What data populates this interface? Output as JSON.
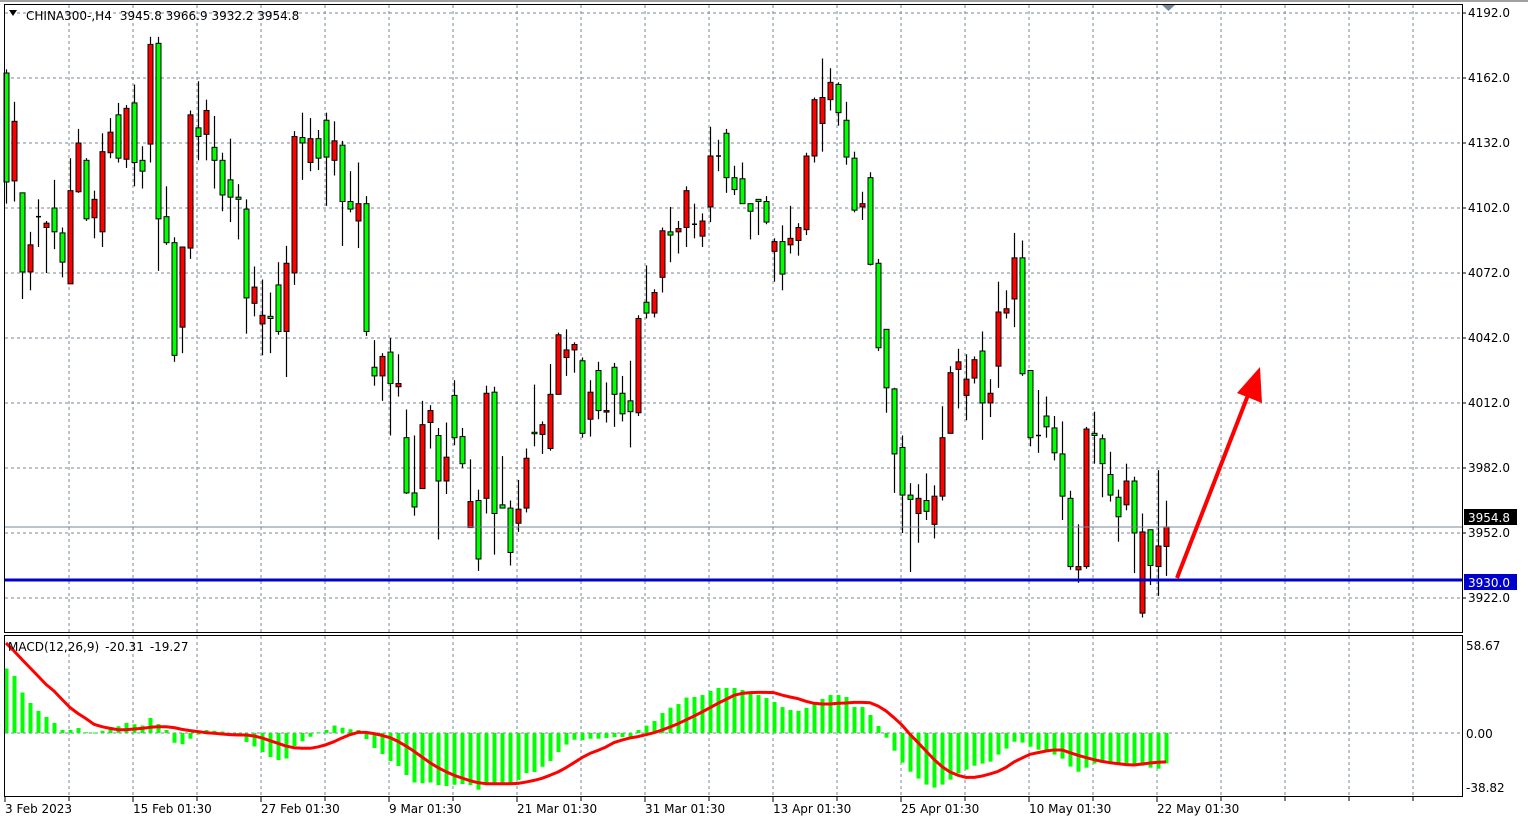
{
  "header": {
    "symbol_timeframe": "CHINA300-,H4",
    "ohlc": "3945.8 3966.9 3932.2 3954.8",
    "menu_icon": "triangle-down-icon"
  },
  "macd_label": {
    "name": "MACD(12,26,9)",
    "macd_value": "-20.31",
    "signal_value": "-19.27"
  },
  "chart_data": {
    "type": "candlestick",
    "symbol": "CHINA300-",
    "timeframe": "H4",
    "grid": true,
    "colors": {
      "bull_body": "#ff0000",
      "bear_body": "#00ff00",
      "wick": "#000000",
      "grid": "#778899",
      "horizontal_line": "#0000cc",
      "bid_line": "#778899",
      "macd_histogram": "#00ff00",
      "signal_line": "#ff0000",
      "arrow": "#ff0000"
    },
    "price_ticks": [
      "4192.0",
      "4162.0",
      "4132.0",
      "4102.0",
      "4072.0",
      "4042.0",
      "4012.0",
      "3982.0",
      "3952.0",
      "3922.0"
    ],
    "time_labels": [
      "3 Feb 2023",
      "15 Feb 01:30",
      "27 Feb 01:30",
      "9 Mar 01:30",
      "21 Mar 01:30",
      "31 Mar 01:30",
      "13 Apr 01:30",
      "25 Apr 01:30",
      "10 May 01:30",
      "22 May 01:30"
    ],
    "bid_price_label": "3954.8",
    "horizontal_line_label": "3930.0",
    "annotations": [
      {
        "type": "arrow",
        "direction": "up",
        "color": "#ff0000"
      }
    ],
    "candles_ohlc": [
      [
        4164.3,
        4166,
        4104,
        4114
      ],
      [
        4114.5,
        4151,
        4105,
        4142
      ],
      [
        4109,
        4109,
        4060,
        4072.5
      ],
      [
        4072.5,
        4091,
        4064,
        4085
      ],
      [
        4098,
        4106,
        4084,
        4098
      ],
      [
        4093,
        4096,
        4072,
        4095
      ],
      [
        4102,
        4115,
        4083,
        4091
      ],
      [
        4090.5,
        4093,
        4070,
        4077
      ],
      [
        4067,
        4125,
        4067,
        4110
      ],
      [
        4109.5,
        4138.5,
        4109,
        4132
      ],
      [
        4124,
        4125,
        4096,
        4097
      ],
      [
        4097.5,
        4110,
        4088,
        4106
      ],
      [
        4091,
        4136.5,
        4084,
        4128
      ],
      [
        4127.5,
        4143.5,
        4125,
        4137
      ],
      [
        4145,
        4150.5,
        4123,
        4125
      ],
      [
        4124.5,
        4149.5,
        4120.5,
        4148
      ],
      [
        4150.5,
        4159,
        4112,
        4123
      ],
      [
        4124,
        4130.5,
        4111,
        4119
      ],
      [
        4131.5,
        4181,
        4123,
        4177.5
      ],
      [
        4178,
        4181,
        4073,
        4097
      ],
      [
        4098,
        4112,
        4085,
        4086
      ],
      [
        4086,
        4088.5,
        4031,
        4034
      ],
      [
        4047,
        4084,
        4035,
        4084
      ],
      [
        4083.5,
        4147,
        4078.5,
        4145
      ],
      [
        4139,
        4160.5,
        4124,
        4135
      ],
      [
        4136,
        4152,
        4124,
        4147
      ],
      [
        4130,
        4144.5,
        4111,
        4124
      ],
      [
        4124,
        4127.5,
        4100.5,
        4108
      ],
      [
        4115,
        4134,
        4095.5,
        4107
      ],
      [
        4107,
        4113,
        4087.5,
        4106
      ],
      [
        4101.5,
        4106,
        4044,
        4060.5
      ],
      [
        4058,
        4075,
        4052,
        4065.5
      ],
      [
        4048.5,
        4069,
        4034,
        4052.5
      ],
      [
        4052,
        4063,
        4035,
        4051
      ],
      [
        4066.5,
        4077,
        4043.5,
        4045
      ],
      [
        4045,
        4084.5,
        4024,
        4076.5
      ],
      [
        4072,
        4137.5,
        4066.5,
        4135
      ],
      [
        4134.5,
        4146,
        4115,
        4132
      ],
      [
        4123,
        4143.5,
        4119,
        4134
      ],
      [
        4134,
        4138,
        4119.5,
        4125
      ],
      [
        4142.5,
        4146,
        4103,
        4125.5
      ],
      [
        4124,
        4142,
        4117,
        4133
      ],
      [
        4131,
        4133,
        4084.5,
        4105
      ],
      [
        4105,
        4119,
        4100,
        4101.5
      ],
      [
        4096,
        4123,
        4083.5,
        4104
      ],
      [
        4104,
        4107.5,
        4043,
        4045
      ],
      [
        4028.5,
        4041,
        4020,
        4024.5
      ],
      [
        4024.5,
        4035,
        4013,
        4033.5
      ],
      [
        4035.5,
        4042,
        3997,
        4021
      ],
      [
        4019.5,
        4034.5,
        4015,
        4021
      ],
      [
        3996,
        4009,
        3970,
        3970.5
      ],
      [
        3970.5,
        3997,
        3960,
        3964
      ],
      [
        3972.5,
        4013,
        3972.5,
        4002
      ],
      [
        4003,
        4011,
        3991,
        4008.5
      ],
      [
        3997,
        4000.5,
        3949,
        3976
      ],
      [
        3976,
        4003,
        3970,
        3987
      ],
      [
        4015.5,
        4022.5,
        3992.5,
        3996
      ],
      [
        3996.5,
        4000.5,
        3982,
        3984
      ],
      [
        3954.5,
        3986,
        3954.5,
        3966.5
      ],
      [
        3967,
        3972,
        3934.5,
        3940
      ],
      [
        3968,
        4020,
        3961,
        4016.5
      ],
      [
        4017,
        4019.5,
        3942,
        3961
      ],
      [
        3965,
        3987.5,
        3963.5,
        3963.5
      ],
      [
        3963.5,
        3967,
        3937,
        3943
      ],
      [
        3956.5,
        3976.5,
        3952.5,
        3963
      ],
      [
        3963.5,
        3991,
        3961.5,
        3986.5
      ],
      [
        3998.5,
        4020.5,
        3992,
        3998
      ],
      [
        3997.5,
        4003.5,
        3988.5,
        4002
      ],
      [
        3991,
        4030,
        3990,
        4016
      ],
      [
        4016,
        4044.5,
        4016,
        4043.5
      ],
      [
        4033,
        4046,
        4024.5,
        4036.5
      ],
      [
        4036.5,
        4040,
        4026,
        4039
      ],
      [
        4031.5,
        4033,
        3996,
        3998
      ],
      [
        4004.5,
        4022.5,
        3996.5,
        4017
      ],
      [
        4027,
        4031,
        4004.5,
        4008.5
      ],
      [
        4008,
        4021.5,
        4003,
        4008.5
      ],
      [
        4028.5,
        4030.5,
        4001,
        4016
      ],
      [
        4016.5,
        4024.5,
        4003.5,
        4007
      ],
      [
        4013,
        4031.5,
        3991.5,
        4008
      ],
      [
        4007.5,
        4052.5,
        4006,
        4051
      ],
      [
        4058.5,
        4075.5,
        4051,
        4053.5
      ],
      [
        4053.5,
        4064.5,
        4051.5,
        4063
      ],
      [
        4070,
        4093,
        4063,
        4091.5
      ],
      [
        4091,
        4102.5,
        4077,
        4089.5
      ],
      [
        4091,
        4096,
        4081,
        4092.5
      ],
      [
        4093,
        4112,
        4084,
        4110
      ],
      [
        4094.5,
        4104,
        4088,
        4094.5
      ],
      [
        4089,
        4099.5,
        4084,
        4096
      ],
      [
        4102.5,
        4139.5,
        4095.5,
        4126
      ],
      [
        4126,
        4133.5,
        4119,
        4126
      ],
      [
        4136.5,
        4138.5,
        4109,
        4116
      ],
      [
        4116,
        4121.5,
        4108,
        4110.5
      ],
      [
        4115.5,
        4123,
        4104,
        4104
      ],
      [
        4104,
        4104,
        4087.5,
        4100.5
      ],
      [
        4106,
        4106,
        4089.5,
        4105
      ],
      [
        4105,
        4107.5,
        4094.5,
        4095.5
      ],
      [
        4082,
        4088,
        4068,
        4086.5
      ],
      [
        4086.5,
        4094,
        4064,
        4071.5
      ],
      [
        4085,
        4103,
        4081,
        4088
      ],
      [
        4087,
        4095,
        4080,
        4093
      ],
      [
        4092,
        4127.5,
        4089.5,
        4126
      ],
      [
        4126,
        4153,
        4123,
        4152
      ],
      [
        4141,
        4171,
        4128,
        4153
      ],
      [
        4152,
        4166.5,
        4147,
        4160
      ],
      [
        4159,
        4160,
        4140,
        4146
      ],
      [
        4142.5,
        4151,
        4122,
        4125.5
      ],
      [
        4125,
        4128,
        4100,
        4101
      ],
      [
        4102.5,
        4109.5,
        4096.5,
        4104
      ],
      [
        4116,
        4118.5,
        4075.5,
        4076
      ],
      [
        4076.5,
        4078.5,
        4036,
        4037.5
      ],
      [
        4046,
        4046,
        4007.5,
        4019
      ],
      [
        4018.5,
        4019,
        3970.5,
        3988.5
      ],
      [
        3991.5,
        3997,
        3952,
        3969.5
      ],
      [
        3969.5,
        3975,
        3934,
        3967.5
      ],
      [
        3961,
        3974.5,
        3947.5,
        3968
      ],
      [
        3967,
        3979.5,
        3958,
        3962
      ],
      [
        3956,
        3974,
        3949.5,
        3969
      ],
      [
        3969,
        4010.5,
        3967,
        3996
      ],
      [
        3998,
        4029,
        3998,
        4026
      ],
      [
        4027.5,
        4037,
        4009.5,
        4031
      ],
      [
        4015.5,
        4034.5,
        4004,
        4023
      ],
      [
        4023.5,
        4033.5,
        4021,
        4032
      ],
      [
        4036,
        4045,
        3995,
        4012
      ],
      [
        4012,
        4023,
        4005.5,
        4016.5
      ],
      [
        4029,
        4068,
        4019,
        4054
      ],
      [
        4053.5,
        4064,
        4051,
        4055.5
      ],
      [
        4060,
        4090.5,
        4047,
        4079
      ],
      [
        4079,
        4087,
        4024.5,
        4025.5
      ],
      [
        4027,
        4027,
        3992,
        3996
      ],
      [
        3997,
        4018,
        3989,
        3997
      ],
      [
        4006,
        4015,
        3996,
        4001
      ],
      [
        4000.5,
        4006,
        3985.5,
        3989
      ],
      [
        3988.5,
        4003.5,
        3958,
        3969
      ],
      [
        3968,
        3971.5,
        3935,
        3936.5
      ],
      [
        3935,
        3956,
        3929,
        3936.5
      ],
      [
        3936.5,
        4001,
        3935.5,
        4000
      ],
      [
        3998,
        4008,
        3984,
        3997
      ],
      [
        3995.5,
        3997.5,
        3968.5,
        3984
      ],
      [
        3979,
        3989.5,
        3966.5,
        3969.5
      ],
      [
        3968.5,
        3972,
        3948,
        3959.5
      ],
      [
        3965,
        3984,
        3962.5,
        3976
      ],
      [
        3976,
        3978,
        3933.5,
        3952
      ],
      [
        3915,
        3961,
        3913,
        3952.5
      ],
      [
        3953.5,
        3953.5,
        3928,
        3937
      ],
      [
        3936.5,
        3981,
        3923,
        3946
      ],
      [
        3945.8,
        3966.9,
        3932.2,
        3954.8
      ]
    ],
    "macd": {
      "ticks": [
        "58.67",
        "0.00",
        "-38.82"
      ],
      "histogram": [
        43,
        38,
        27,
        20,
        14.7,
        10.7,
        6.7,
        2,
        2,
        3.3,
        0.5,
        0.3,
        1.5,
        4,
        4.5,
        6.7,
        5.8,
        5,
        10,
        6,
        2,
        -6.5,
        -7.5,
        -3.8,
        -1,
        2,
        1.5,
        1,
        -1,
        -1,
        -6,
        -9,
        -12.7,
        -16,
        -18,
        -17,
        -8.7,
        -5.5,
        -2.5,
        0.5,
        2,
        5,
        3.5,
        2.5,
        2,
        -4,
        -10,
        -14,
        -18.7,
        -22,
        -28,
        -33,
        -33.5,
        -33,
        -34.7,
        -35.3,
        -34.5,
        -34,
        -34.7,
        -37.8,
        -33,
        -33.5,
        -34,
        -33.5,
        -31.3,
        -26.7,
        -26,
        -22.5,
        -18.7,
        -12.7,
        -7.7,
        -4.5,
        -4.7,
        -3.8,
        -3.8,
        -3.3,
        -2.7,
        -2.7,
        -2.4,
        2,
        4.9,
        8,
        13.3,
        16.9,
        19.3,
        23.6,
        24,
        25.3,
        28,
        30,
        30,
        30,
        28.7,
        26.9,
        25.3,
        23.3,
        20.7,
        17.3,
        15.3,
        14.7,
        16.7,
        19.6,
        22.7,
        25.3,
        25.3,
        24,
        17.3,
        17.3,
        12,
        4.7,
        -3.1,
        -11.8,
        -19.8,
        -25.8,
        -30.4,
        -34.4,
        -36.4,
        -34.4,
        -31.1,
        -26.9,
        -24.4,
        -21.8,
        -20.4,
        -19.1,
        -14.4,
        -10.4,
        -5.8,
        -6.4,
        -9.1,
        -11.1,
        -11.8,
        -14.4,
        -17.1,
        -22.4,
        -25.8,
        -23.1,
        -20.4,
        -19.8,
        -20.4,
        -21.1,
        -21.1,
        -21.8,
        -21.8,
        -23.1,
        -23.8,
        -20.31
      ],
      "signal": [
        60,
        54.7,
        49,
        43.5,
        38,
        32.4,
        28,
        22.4,
        17,
        13,
        9.6,
        5.8,
        4.2,
        3.1,
        2.2,
        2.2,
        2.7,
        3.1,
        3.8,
        4.2,
        4.2,
        3.6,
        2.4,
        1.6,
        0.9,
        0.2,
        -0.2,
        -0.7,
        -1.1,
        -1.3,
        -1.3,
        -2,
        -3.3,
        -5.1,
        -6.9,
        -8.7,
        -9.8,
        -10.2,
        -10.2,
        -9.3,
        -7.8,
        -5.8,
        -3.3,
        -1.1,
        0.4,
        0.4,
        -0.4,
        -1.6,
        -3.1,
        -5.6,
        -8.7,
        -12.2,
        -16,
        -19.8,
        -23.1,
        -25.8,
        -28.2,
        -30,
        -31.8,
        -33.1,
        -33.8,
        -33.8,
        -33.8,
        -33.8,
        -33.6,
        -32.7,
        -31.6,
        -30.2,
        -28.2,
        -26,
        -23.1,
        -19.8,
        -16.4,
        -13.6,
        -11.6,
        -9.3,
        -6.4,
        -4.7,
        -3.3,
        -2.4,
        -1.1,
        0.2,
        2,
        4,
        6.2,
        8.7,
        11.3,
        14,
        16.9,
        19.8,
        22.4,
        25.1,
        26.4,
        26.9,
        27.1,
        27.1,
        26.9,
        25.3,
        24,
        22.9,
        21.1,
        19.8,
        19.3,
        19.3,
        19.8,
        20,
        20.4,
        20.4,
        20.2,
        18,
        14.7,
        10.2,
        5.3,
        -0.9,
        -6.4,
        -12,
        -17.6,
        -22.4,
        -26,
        -28.2,
        -29.6,
        -29.6,
        -28.7,
        -27.3,
        -25.6,
        -22.9,
        -19.3,
        -16.7,
        -14.2,
        -13.1,
        -12,
        -11.3,
        -11.3,
        -13.1,
        -14.9,
        -16.4,
        -17.8,
        -18.9,
        -19.8,
        -20.4,
        -21.1,
        -21.3,
        -20.7,
        -20,
        -19.5,
        -19.27
      ]
    }
  }
}
